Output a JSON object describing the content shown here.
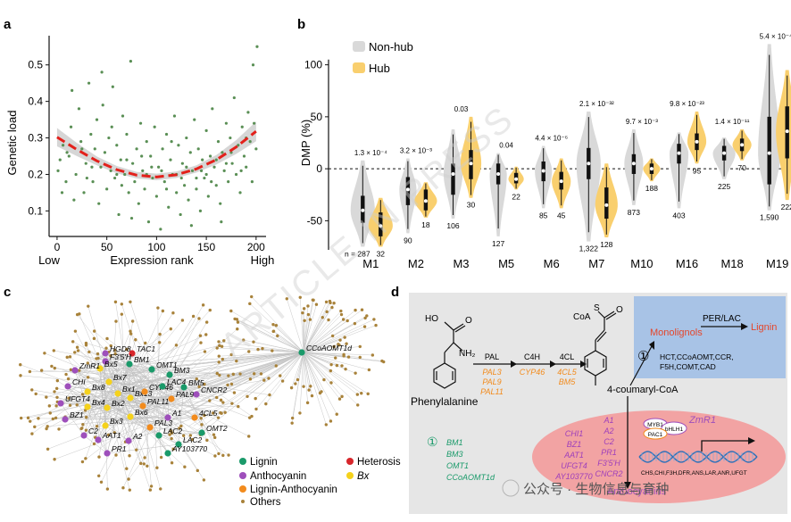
{
  "panels": {
    "a": {
      "letter": "a",
      "chart_data": {
        "type": "scatter",
        "xlabel": "Expression rank",
        "ylabel": "Genetic load",
        "x_ticks": [
          0,
          50,
          100,
          150,
          200
        ],
        "y_ticks": [
          0.1,
          0.2,
          0.3,
          0.4,
          0.5
        ],
        "xlim": [
          -8,
          210
        ],
        "ylim": [
          0.03,
          0.58
        ],
        "x_low_label": "Low",
        "x_high_label": "High",
        "fit_curve": {
          "x": [
            0,
            20,
            40,
            60,
            80,
            100,
            120,
            140,
            160,
            180,
            200
          ],
          "y": [
            0.302,
            0.268,
            0.237,
            0.213,
            0.198,
            0.193,
            0.199,
            0.215,
            0.24,
            0.275,
            0.318
          ]
        },
        "fit_ci_halfwidth": [
          0.025,
          0.018,
          0.012,
          0.01,
          0.009,
          0.009,
          0.009,
          0.01,
          0.013,
          0.019,
          0.027
        ],
        "points": [
          [
            1,
            0.21
          ],
          [
            3,
            0.24
          ],
          [
            6,
            0.28
          ],
          [
            9,
            0.18
          ],
          [
            12,
            0.25
          ],
          [
            14,
            0.33
          ],
          [
            17,
            0.13
          ],
          [
            19,
            0.2
          ],
          [
            22,
            0.38
          ],
          [
            24,
            0.29
          ],
          [
            27,
            0.15
          ],
          [
            29,
            0.23
          ],
          [
            32,
            0.45
          ],
          [
            34,
            0.31
          ],
          [
            36,
            0.18
          ],
          [
            38,
            0.27
          ],
          [
            40,
            0.35
          ],
          [
            42,
            0.12
          ],
          [
            44,
            0.22
          ],
          [
            46,
            0.39
          ],
          [
            48,
            0.26
          ],
          [
            50,
            0.16
          ],
          [
            52,
            0.3
          ],
          [
            54,
            0.21
          ],
          [
            56,
            0.44
          ],
          [
            58,
            0.19
          ],
          [
            60,
            0.28
          ],
          [
            62,
            0.09
          ],
          [
            64,
            0.24
          ],
          [
            66,
            0.36
          ],
          [
            68,
            0.2
          ],
          [
            70,
            0.31
          ],
          [
            72,
            0.15
          ],
          [
            74,
            0.51
          ],
          [
            76,
            0.23
          ],
          [
            78,
            0.18
          ],
          [
            80,
            0.27
          ],
          [
            82,
            0.12
          ],
          [
            84,
            0.34
          ],
          [
            86,
            0.21
          ],
          [
            88,
            0.16
          ],
          [
            90,
            0.29
          ],
          [
            92,
            0.07
          ],
          [
            94,
            0.25
          ],
          [
            96,
            0.19
          ],
          [
            98,
            0.33
          ],
          [
            100,
            0.14
          ],
          [
            102,
            0.22
          ],
          [
            104,
            0.05
          ],
          [
            106,
            0.27
          ],
          [
            108,
            0.18
          ],
          [
            110,
            0.31
          ],
          [
            112,
            0.11
          ],
          [
            114,
            0.24
          ],
          [
            116,
            0.2
          ],
          [
            118,
            0.36
          ],
          [
            120,
            0.15
          ],
          [
            122,
            0.28
          ],
          [
            124,
            0.09
          ],
          [
            126,
            0.23
          ],
          [
            128,
            0.17
          ],
          [
            130,
            0.3
          ],
          [
            132,
            0.13
          ],
          [
            134,
            0.26
          ],
          [
            136,
            0.21
          ],
          [
            138,
            0.35
          ],
          [
            140,
            0.16
          ],
          [
            142,
            0.27
          ],
          [
            144,
            0.1
          ],
          [
            146,
            0.24
          ],
          [
            148,
            0.19
          ],
          [
            150,
            0.32
          ],
          [
            152,
            0.14
          ],
          [
            154,
            0.25
          ],
          [
            156,
            0.38
          ],
          [
            158,
            0.22
          ],
          [
            160,
            0.17
          ],
          [
            162,
            0.29
          ],
          [
            164,
            0.12
          ],
          [
            166,
            0.26
          ],
          [
            168,
            0.21
          ],
          [
            170,
            0.34
          ],
          [
            172,
            0.18
          ],
          [
            174,
            0.3
          ],
          [
            176,
            0.23
          ],
          [
            178,
            0.41
          ],
          [
            180,
            0.2
          ],
          [
            182,
            0.28
          ],
          [
            184,
            0.15
          ],
          [
            186,
            0.33
          ],
          [
            188,
            0.25
          ],
          [
            190,
            0.22
          ],
          [
            192,
            0.37
          ],
          [
            194,
            0.29
          ],
          [
            196,
            0.18
          ],
          [
            198,
            0.34
          ],
          [
            200,
            0.27
          ],
          [
            201,
            0.55
          ],
          [
            197,
            0.5
          ],
          [
            15,
            0.43
          ],
          [
            45,
            0.48
          ],
          [
            75,
            0.08
          ],
          [
            135,
            0.06
          ],
          [
            165,
            0.07
          ],
          [
            5,
            0.15
          ],
          [
            55,
            0.33
          ],
          [
            85,
            0.25
          ],
          [
            115,
            0.29
          ],
          [
            145,
            0.21
          ],
          [
            175,
            0.26
          ],
          [
            25,
            0.27
          ],
          [
            65,
            0.17
          ],
          [
            95,
            0.22
          ],
          [
            125,
            0.19
          ],
          [
            155,
            0.18
          ],
          [
            185,
            0.21
          ],
          [
            10,
            0.26
          ],
          [
            30,
            0.19
          ],
          [
            70,
            0.24
          ],
          [
            90,
            0.2
          ],
          [
            110,
            0.16
          ],
          [
            130,
            0.22
          ],
          [
            150,
            0.2
          ],
          [
            170,
            0.23
          ],
          [
            190,
            0.3
          ],
          [
            35,
            0.22
          ],
          [
            105,
            0.21
          ],
          [
            160,
            0.24
          ],
          [
            120,
            0.2
          ],
          [
            60,
            0.2
          ],
          [
            140,
            0.19
          ]
        ]
      }
    },
    "b": {
      "letter": "b",
      "chart_data": {
        "type": "violin",
        "ylabel": "DMP (%)",
        "y_ticks": [
          -50,
          0,
          50,
          100
        ],
        "ylim": [
          -78,
          128
        ],
        "legend": {
          "placement": "top-left",
          "items": [
            {
              "name": "Non-hub",
              "color": "#d9d9d9"
            },
            {
              "name": "Hub",
              "color": "#f9cf6e"
            }
          ]
        },
        "modules": [
          {
            "name": "M1",
            "p": "1.3 × 10⁻⁴",
            "nonhub": {
              "n": "n = 287",
              "median": -40,
              "q1": -52,
              "q3": -26,
              "min": -75,
              "max": 8,
              "width": 13
            },
            "hub": {
              "n": "32",
              "median": -55,
              "q1": -65,
              "q3": -42,
              "min": -75,
              "max": -28,
              "width": 13
            }
          },
          {
            "name": "M2",
            "p": "3.2 × 10⁻³",
            "nonhub": {
              "n": "90",
              "median": -20,
              "q1": -35,
              "q3": -8,
              "min": -62,
              "max": 10,
              "width": 9
            },
            "hub": {
              "n": "18",
              "median": -31,
              "q1": -40,
              "q3": -20,
              "min": -47,
              "max": -13,
              "width": 12
            }
          },
          {
            "name": "M3",
            "p": "0.03",
            "nonhub": {
              "n": "106",
              "median": -5,
              "q1": -25,
              "q3": 5,
              "min": -48,
              "max": 38,
              "width": 10
            },
            "hub": {
              "n": "30",
              "median": 5,
              "q1": -10,
              "q3": 18,
              "min": -28,
              "max": 50,
              "width": 11
            }
          },
          {
            "name": "M5",
            "p": "0.04",
            "nonhub": {
              "n": "127",
              "median": -5,
              "q1": -15,
              "q3": 5,
              "min": -65,
              "max": 15,
              "width": 9
            },
            "hub": {
              "n": "22",
              "median": -10,
              "q1": -14,
              "q3": -4,
              "min": -20,
              "max": 2,
              "width": 8
            }
          },
          {
            "name": "M6",
            "p": "4.4 × 10⁻⁶",
            "nonhub": {
              "n": "85",
              "median": -2,
              "q1": -12,
              "q3": 7,
              "min": -38,
              "max": 22,
              "width": 9
            },
            "hub": {
              "n": "45",
              "median": -12,
              "q1": -20,
              "q3": -3,
              "min": -38,
              "max": 10,
              "width": 10
            }
          },
          {
            "name": "M7",
            "p": "2.1 × 10⁻³²",
            "nonhub": {
              "n": "1,322",
              "median": 5,
              "q1": -10,
              "q3": 20,
              "min": -70,
              "max": 55,
              "width": 13
            },
            "hub": {
              "n": "128",
              "median": -35,
              "q1": -48,
              "q3": -18,
              "min": -66,
              "max": 5,
              "width": 12
            }
          },
          {
            "name": "M10",
            "p": "9.7 × 10⁻³",
            "nonhub": {
              "n": "873",
              "median": 5,
              "q1": -5,
              "q3": 14,
              "min": -35,
              "max": 38,
              "width": 10
            },
            "hub": {
              "n": "188",
              "median": 0,
              "q1": -5,
              "q3": 5,
              "min": -12,
              "max": 10,
              "width": 9
            }
          },
          {
            "name": "M16",
            "p": "9.8 × 10⁻²³",
            "nonhub": {
              "n": "403",
              "median": 15,
              "q1": 5,
              "q3": 24,
              "min": -38,
              "max": 35,
              "width": 10
            },
            "hub": {
              "n": "95",
              "median": 26,
              "q1": 18,
              "q3": 34,
              "min": 5,
              "max": 55,
              "width": 10
            }
          },
          {
            "name": "M18",
            "p": "1.4 × 10⁻¹¹",
            "nonhub": {
              "n": "225",
              "median": 15,
              "q1": 8,
              "q3": 22,
              "min": -10,
              "max": 30,
              "width": 12
            },
            "hub": {
              "n": "70",
              "median": 23,
              "q1": 17,
              "q3": 29,
              "min": 8,
              "max": 38,
              "width": 10
            }
          },
          {
            "name": "M19",
            "p": "5.4 × 10⁻⁴⁵",
            "nonhub": {
              "n": "1,590",
              "median": 15,
              "q1": -15,
              "q3": 50,
              "min": -40,
              "max": 120,
              "width": 12
            },
            "hub": {
              "n": "222",
              "median": 36,
              "q1": 10,
              "q3": 60,
              "min": -30,
              "max": 95,
              "width": 12
            }
          }
        ]
      }
    },
    "c": {
      "letter": "c",
      "legend": [
        {
          "label": "Lignin",
          "color": "#1a9a6a",
          "italic": false
        },
        {
          "label": "Heterosis",
          "color": "#d7262b",
          "italic": false
        },
        {
          "label": "Anthocyanin",
          "color": "#9e4fbb",
          "italic": false
        },
        {
          "label": "Bx",
          "color": "#f5d21c",
          "italic": true
        },
        {
          "label": "Lignin-Anthocyanin",
          "color": "#f28b1d",
          "italic": false
        },
        {
          "label": "Others",
          "color": "#a8823a",
          "italic": false
        }
      ],
      "genes": [
        {
          "label": "HGD8",
          "cat": "Anthocyanin"
        },
        {
          "label": "TAC1",
          "cat": "Heterosis"
        },
        {
          "label": "F3'5'H",
          "cat": "Anthocyanin"
        },
        {
          "label": "Bx5",
          "cat": "Bx"
        },
        {
          "label": "BM1",
          "cat": "Lignin"
        },
        {
          "label": "ZmR1",
          "cat": "Anthocyanin"
        },
        {
          "label": "OMT1",
          "cat": "Lignin"
        },
        {
          "label": "BM3",
          "cat": "Lignin"
        },
        {
          "label": "Bx7",
          "cat": "Bx"
        },
        {
          "label": "CHI",
          "cat": "Anthocyanin"
        },
        {
          "label": "Bx8",
          "cat": "Bx"
        },
        {
          "label": "Bx1",
          "cat": "Bx"
        },
        {
          "label": "Bx13",
          "cat": "Bx"
        },
        {
          "label": "CYP46",
          "cat": "Lignin-Anthocyanin"
        },
        {
          "label": "LAC4",
          "cat": "Lignin"
        },
        {
          "label": "BM5",
          "cat": "Lignin"
        },
        {
          "label": "UFGT4",
          "cat": "Anthocyanin"
        },
        {
          "label": "Bx4",
          "cat": "Bx"
        },
        {
          "label": "Bx2",
          "cat": "Bx"
        },
        {
          "label": "PAL11",
          "cat": "Lignin-Anthocyanin"
        },
        {
          "label": "PAL9",
          "cat": "Lignin-Anthocyanin"
        },
        {
          "label": "CNCR2",
          "cat": "Anthocyanin"
        },
        {
          "label": "BZ1",
          "cat": "Anthocyanin"
        },
        {
          "label": "Bx6",
          "cat": "Bx"
        },
        {
          "label": "A1",
          "cat": "Anthocyanin"
        },
        {
          "label": "4CL5",
          "cat": "Lignin-Anthocyanin"
        },
        {
          "label": "Bx3",
          "cat": "Bx"
        },
        {
          "label": "PAL3",
          "cat": "Lignin-Anthocyanin"
        },
        {
          "label": "C2",
          "cat": "Anthocyanin"
        },
        {
          "label": "AAT1",
          "cat": "Anthocyanin"
        },
        {
          "label": "LAC2",
          "cat": "Lignin"
        },
        {
          "label": "OMT2",
          "cat": "Lignin"
        },
        {
          "label": "A2",
          "cat": "Anthocyanin"
        },
        {
          "label": "LAC2",
          "cat": "Lignin"
        },
        {
          "label": "PR1",
          "cat": "Anthocyanin"
        },
        {
          "label": "AY103770",
          "cat": "Lignin"
        },
        {
          "label": "CCoAOMT1d",
          "cat": "Lignin"
        }
      ]
    },
    "d": {
      "letter": "d",
      "phenylalanine": "Phenylalanine",
      "oh_label": "HO",
      "nh2_label": "NH₂",
      "o_label": "O",
      "coa_label": "CoA",
      "s_label": "S",
      "coumaryl": "4-coumaryl-CoA",
      "steps": [
        {
          "enzyme": "PAL",
          "genes": [
            "PAL3",
            "PAL9",
            "PAL11"
          ]
        },
        {
          "enzyme": "C4H",
          "genes": [
            "CYP46"
          ]
        },
        {
          "enzyme": "4CL",
          "genes": [
            "4CL5",
            "BM5"
          ]
        }
      ],
      "lignin_box": {
        "monolignols": "Monolignols",
        "per_lac": "PER/LAC",
        "lignin": "Lignin",
        "circle": "①",
        "genes": [
          "HCT,CCoAOMT,CCR,",
          "F5H,COMT,CAD"
        ]
      },
      "lower_lignin": {
        "circle": "①",
        "genes": [
          "BM1",
          "BM3",
          "OMT1",
          "CCoAOMT1d"
        ]
      },
      "antho": {
        "col1": [
          "CHI1",
          "BZ1",
          "AAT1",
          "UFGT4",
          "AY103770"
        ],
        "col2": [
          "A1",
          "A2",
          "C2",
          "PR1",
          "F3'5'H",
          "CNCR2"
        ],
        "product": "Anthocyanins",
        "tfs": [
          "MYB1",
          "bHLH1",
          "PAC1"
        ],
        "zmr1": "ZmR1",
        "target_genes": "CHS,CHI,F3H,DFR,ANS,LAR,ANR,UFGT"
      }
    }
  },
  "watermarks": {
    "diagonal": "ARTICLE IN PRESS",
    "footer": "公众号 · 生物信息与育种"
  }
}
